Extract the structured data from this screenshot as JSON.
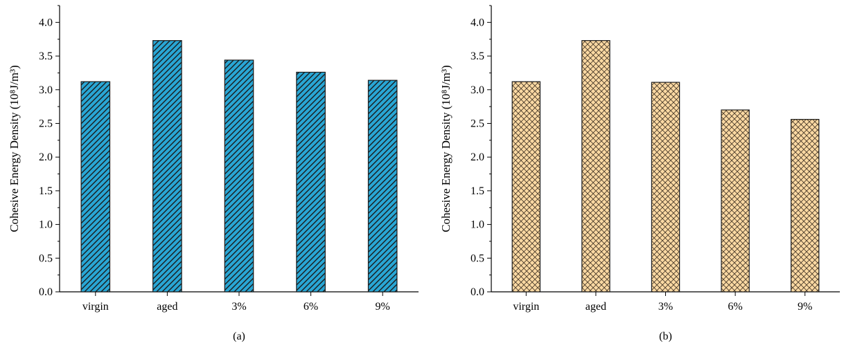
{
  "chart_data": [
    {
      "type": "bar",
      "panel_label": "(a)",
      "categories": [
        "virgin",
        "aged",
        "3%",
        "6%",
        "9%"
      ],
      "values": [
        3.12,
        3.73,
        3.44,
        3.26,
        3.14
      ],
      "ylabel": "Cohesive Energy Density (10⁸J/m³)",
      "ylim": [
        0,
        4.25
      ],
      "yticks": [
        0.0,
        0.5,
        1.0,
        1.5,
        2.0,
        2.5,
        3.0,
        3.5,
        4.0
      ],
      "grid": false,
      "fill_color": "#29a6d4",
      "hatch": "diagonal"
    },
    {
      "type": "bar",
      "panel_label": "(b)",
      "categories": [
        "virgin",
        "aged",
        "3%",
        "6%",
        "9%"
      ],
      "values": [
        3.12,
        3.73,
        3.11,
        2.7,
        2.56
      ],
      "ylabel": "Cohesive Energy Density (10⁸J/m³)",
      "ylim": [
        0,
        4.25
      ],
      "yticks": [
        0.0,
        0.5,
        1.0,
        1.5,
        2.0,
        2.5,
        3.0,
        3.5,
        4.0
      ],
      "grid": false,
      "fill_color": "#fbd9a3",
      "hatch": "crosshatch"
    }
  ]
}
